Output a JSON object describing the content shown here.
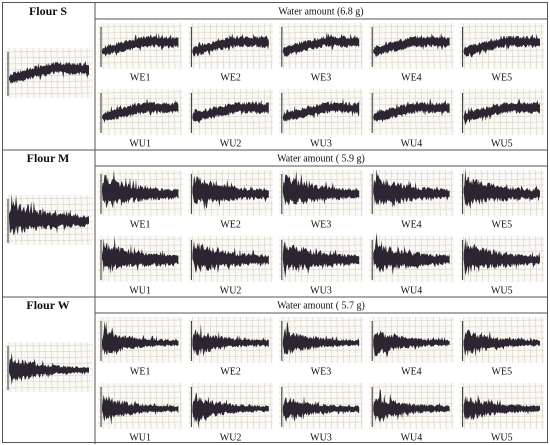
{
  "sections": [
    {
      "flour": "Flour S",
      "water": "Water amount (6.8 g)",
      "rows": [
        [
          "WE1",
          "WE2",
          "WE3",
          "WE4",
          "WE5"
        ],
        [
          "WU1",
          "WU2",
          "WU3",
          "WU4",
          "WU5"
        ]
      ]
    },
    {
      "flour": "Flour M",
      "water": "Water amount ( 5.9 g)",
      "rows": [
        [
          "WE1",
          "WE2",
          "WE3",
          "WE4",
          "WE5"
        ],
        [
          "WU1",
          "WU2",
          "WU3",
          "WU4",
          "WU5"
        ]
      ]
    },
    {
      "flour": "Flour W",
      "water": "Water amount ( 5.7 g)",
      "rows": [
        [
          "WE1",
          "WE2",
          "WE3",
          "WE4",
          "WE5"
        ],
        [
          "WU1",
          "WU2",
          "WU3",
          "WU4",
          "WU5"
        ]
      ]
    }
  ]
}
